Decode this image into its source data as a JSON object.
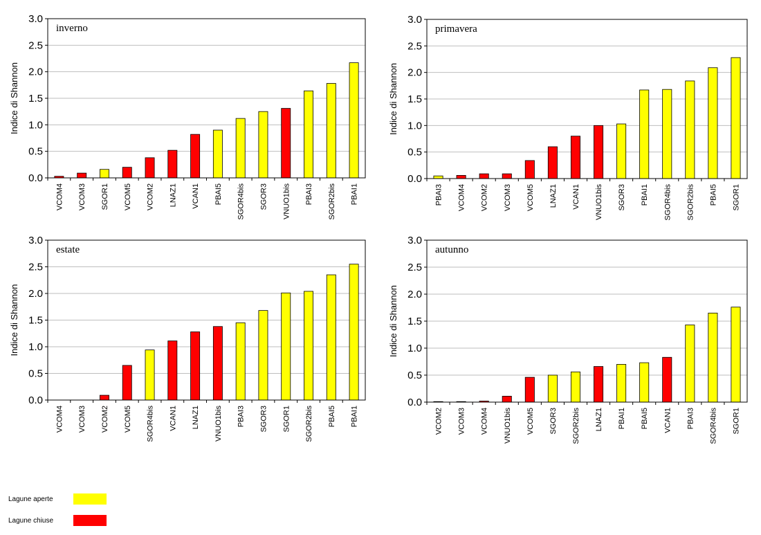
{
  "colors": {
    "aperte": "#FFFF00",
    "chiuse": "#FF0000",
    "grid": "#BEBEBE",
    "axis": "#000000"
  },
  "legend": {
    "items": [
      {
        "label": "Lagune aperte",
        "type": "aperte"
      },
      {
        "label": "Lagune chiuse",
        "type": "chiuse"
      }
    ]
  },
  "chart_data": [
    {
      "type": "bar",
      "title": "inverno",
      "ylabel": "Indice di Shannon",
      "ylim": [
        0,
        3
      ],
      "yticks": [
        "0.0",
        "0.5",
        "1.0",
        "1.5",
        "2.0",
        "2.5",
        "3.0"
      ],
      "grid": true,
      "categories": [
        "VCOM4",
        "VCOM3",
        "SGOR1",
        "VCOM5",
        "VCOM2",
        "LNAZ1",
        "VCAN1",
        "PBAI5",
        "SGOR4bis",
        "SGOR3",
        "VNUO1bis",
        "PBAI3",
        "SGOR2bis",
        "PBAI1"
      ],
      "values": [
        0.03,
        0.09,
        0.16,
        0.2,
        0.38,
        0.52,
        0.82,
        0.9,
        1.12,
        1.25,
        1.31,
        1.64,
        1.78,
        2.17
      ],
      "lagoon_type": [
        "chiuse",
        "chiuse",
        "aperte",
        "chiuse",
        "chiuse",
        "chiuse",
        "chiuse",
        "aperte",
        "aperte",
        "aperte",
        "chiuse",
        "aperte",
        "aperte",
        "aperte"
      ]
    },
    {
      "type": "bar",
      "title": "primavera",
      "ylabel": "Indice di Shannon",
      "ylim": [
        0,
        3
      ],
      "yticks": [
        "0.0",
        "0.5",
        "1.0",
        "1.5",
        "2.0",
        "2.5",
        "3.0"
      ],
      "grid": true,
      "categories": [
        "PBAI3",
        "VCOM4",
        "VCOM2",
        "VCOM3",
        "VCOM5",
        "LNAZ1",
        "VCAN1",
        "VNUO1bis",
        "SGOR3",
        "PBAI1",
        "SGOR4bis",
        "SGOR2bis",
        "PBAI5",
        "SGOR1"
      ],
      "values": [
        0.05,
        0.06,
        0.09,
        0.09,
        0.34,
        0.6,
        0.8,
        1.0,
        1.03,
        1.67,
        1.68,
        1.84,
        2.09,
        2.28
      ],
      "lagoon_type": [
        "aperte",
        "chiuse",
        "chiuse",
        "chiuse",
        "chiuse",
        "chiuse",
        "chiuse",
        "chiuse",
        "aperte",
        "aperte",
        "aperte",
        "aperte",
        "aperte",
        "aperte"
      ]
    },
    {
      "type": "bar",
      "title": "estate",
      "ylabel": "Indice di Shannon",
      "ylim": [
        0,
        3
      ],
      "yticks": [
        "0.0",
        "0.5",
        "1.0",
        "1.5",
        "2.0",
        "2.5",
        "3.0"
      ],
      "grid": true,
      "categories": [
        "VCOM4",
        "VCOM3",
        "VCOM2",
        "VCOM5",
        "SGOR4bis",
        "VCAN1",
        "LNAZ1",
        "VNUO1bis",
        "PBAI3",
        "SGOR3",
        "SGOR1",
        "SGOR2bis",
        "PBAI5",
        "PBAI1"
      ],
      "values": [
        0.0,
        0.0,
        0.09,
        0.65,
        0.94,
        1.11,
        1.28,
        1.38,
        1.45,
        1.68,
        2.01,
        2.04,
        2.35,
        2.55
      ],
      "lagoon_type": [
        "chiuse",
        "chiuse",
        "chiuse",
        "chiuse",
        "aperte",
        "chiuse",
        "chiuse",
        "chiuse",
        "aperte",
        "aperte",
        "aperte",
        "aperte",
        "aperte",
        "aperte"
      ]
    },
    {
      "type": "bar",
      "title": "autunno",
      "ylabel": "Indice di Shannon",
      "ylim": [
        0,
        3
      ],
      "yticks": [
        "0.0",
        "0.5",
        "1.0",
        "1.5",
        "2.0",
        "2.5",
        "3.0"
      ],
      "grid": true,
      "categories": [
        "VCOM2",
        "VCOM3",
        "VCOM4",
        "VNUO1bis",
        "VCOM5",
        "SGOR3",
        "SGOR2bis",
        "LNAZ1",
        "PBAI1",
        "PBAI5",
        "VCAN1",
        "PBAI3",
        "SGOR4bis",
        "SGOR1"
      ],
      "values": [
        0.01,
        0.01,
        0.02,
        0.11,
        0.46,
        0.5,
        0.56,
        0.66,
        0.7,
        0.73,
        0.83,
        1.43,
        1.65,
        1.76
      ],
      "lagoon_type": [
        "chiuse",
        "chiuse",
        "chiuse",
        "chiuse",
        "chiuse",
        "aperte",
        "aperte",
        "chiuse",
        "aperte",
        "aperte",
        "chiuse",
        "aperte",
        "aperte",
        "aperte"
      ]
    }
  ]
}
